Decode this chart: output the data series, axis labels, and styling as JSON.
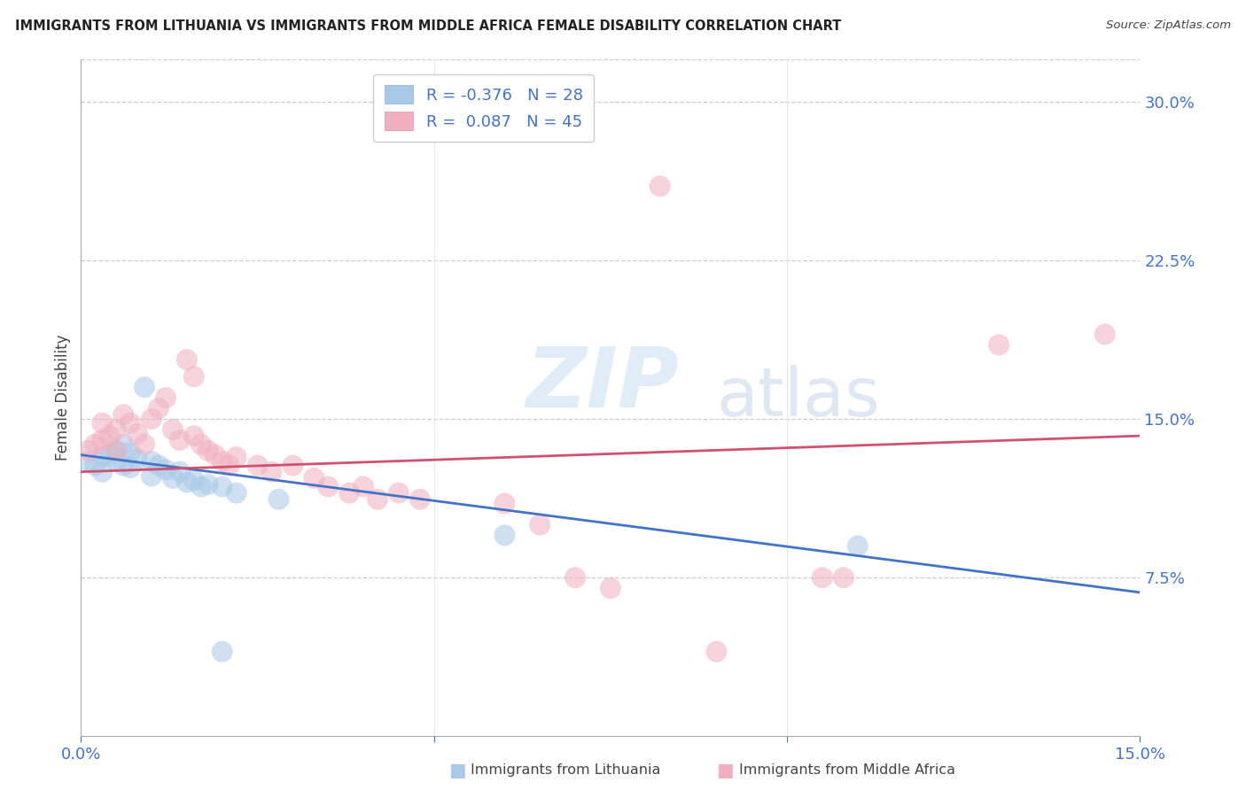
{
  "title": "IMMIGRANTS FROM LITHUANIA VS IMMIGRANTS FROM MIDDLE AFRICA FEMALE DISABILITY CORRELATION CHART",
  "source": "Source: ZipAtlas.com",
  "ylabel_label": "Female Disability",
  "right_ytick_vals": [
    0.075,
    0.15,
    0.225,
    0.3
  ],
  "right_ytick_labels": [
    "7.5%",
    "15.0%",
    "22.5%",
    "30.0%"
  ],
  "xlim": [
    0.0,
    0.15
  ],
  "ylim": [
    0.0,
    0.32
  ],
  "color_blue": "#a8c8e8",
  "color_pink": "#f0b0c0",
  "line_color_blue": "#4472c4",
  "line_color_pink": "#d05070",
  "watermark_zip": "ZIP",
  "watermark_atlas": "atlas",
  "blue_scatter": [
    [
      0.001,
      0.13
    ],
    [
      0.002,
      0.128
    ],
    [
      0.003,
      0.125
    ],
    [
      0.003,
      0.132
    ],
    [
      0.004,
      0.133
    ],
    [
      0.005,
      0.135
    ],
    [
      0.005,
      0.13
    ],
    [
      0.006,
      0.138
    ],
    [
      0.006,
      0.128
    ],
    [
      0.007,
      0.134
    ],
    [
      0.007,
      0.127
    ],
    [
      0.008,
      0.131
    ],
    [
      0.009,
      0.165
    ],
    [
      0.01,
      0.13
    ],
    [
      0.01,
      0.123
    ],
    [
      0.011,
      0.128
    ],
    [
      0.012,
      0.126
    ],
    [
      0.013,
      0.122
    ],
    [
      0.014,
      0.125
    ],
    [
      0.015,
      0.12
    ],
    [
      0.016,
      0.121
    ],
    [
      0.017,
      0.118
    ],
    [
      0.018,
      0.119
    ],
    [
      0.02,
      0.118
    ],
    [
      0.022,
      0.115
    ],
    [
      0.028,
      0.112
    ],
    [
      0.06,
      0.095
    ],
    [
      0.02,
      0.04
    ],
    [
      0.11,
      0.09
    ]
  ],
  "pink_scatter": [
    [
      0.001,
      0.135
    ],
    [
      0.002,
      0.138
    ],
    [
      0.003,
      0.14
    ],
    [
      0.003,
      0.148
    ],
    [
      0.004,
      0.142
    ],
    [
      0.005,
      0.145
    ],
    [
      0.005,
      0.135
    ],
    [
      0.006,
      0.152
    ],
    [
      0.007,
      0.148
    ],
    [
      0.008,
      0.143
    ],
    [
      0.009,
      0.138
    ],
    [
      0.01,
      0.15
    ],
    [
      0.011,
      0.155
    ],
    [
      0.012,
      0.16
    ],
    [
      0.013,
      0.145
    ],
    [
      0.014,
      0.14
    ],
    [
      0.015,
      0.178
    ],
    [
      0.016,
      0.17
    ],
    [
      0.016,
      0.142
    ],
    [
      0.017,
      0.138
    ],
    [
      0.018,
      0.135
    ],
    [
      0.019,
      0.133
    ],
    [
      0.02,
      0.13
    ],
    [
      0.021,
      0.128
    ],
    [
      0.022,
      0.132
    ],
    [
      0.025,
      0.128
    ],
    [
      0.027,
      0.125
    ],
    [
      0.03,
      0.128
    ],
    [
      0.033,
      0.122
    ],
    [
      0.035,
      0.118
    ],
    [
      0.038,
      0.115
    ],
    [
      0.04,
      0.118
    ],
    [
      0.042,
      0.112
    ],
    [
      0.045,
      0.115
    ],
    [
      0.048,
      0.112
    ],
    [
      0.06,
      0.11
    ],
    [
      0.065,
      0.1
    ],
    [
      0.07,
      0.075
    ],
    [
      0.075,
      0.07
    ],
    [
      0.082,
      0.26
    ],
    [
      0.09,
      0.04
    ],
    [
      0.105,
      0.075
    ],
    [
      0.108,
      0.075
    ],
    [
      0.13,
      0.185
    ],
    [
      0.145,
      0.19
    ]
  ],
  "blue_line": [
    [
      0.0,
      0.133
    ],
    [
      0.15,
      0.068
    ]
  ],
  "pink_line": [
    [
      0.0,
      0.125
    ],
    [
      0.15,
      0.142
    ]
  ]
}
